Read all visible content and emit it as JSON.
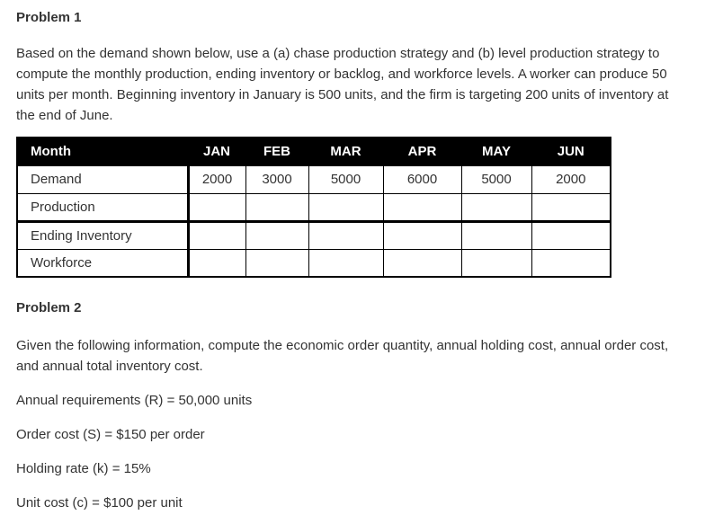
{
  "problem1": {
    "title": "Problem 1",
    "description": "Based on the demand shown below, use a (a) chase production strategy and (b) level production strategy to compute the monthly production, ending inventory or backlog, and workforce levels. A worker can produce 50 units per month. Beginning inventory in January is 500 units, and the firm is targeting 200 units of inventory at the end of June.",
    "table": {
      "header": [
        "Month",
        "JAN",
        "FEB",
        "MAR",
        "APR",
        "MAY",
        "JUN"
      ],
      "rows": [
        {
          "label": "Demand",
          "values": [
            "2000",
            "3000",
            "5000",
            "6000",
            "5000",
            "2000"
          ]
        },
        {
          "label": "Production",
          "values": [
            "",
            "",
            "",
            "",
            "",
            ""
          ]
        },
        {
          "label": "Ending Inventory",
          "values": [
            "",
            "",
            "",
            "",
            "",
            ""
          ]
        },
        {
          "label": "Workforce",
          "values": [
            "",
            "",
            "",
            "",
            "",
            ""
          ]
        }
      ]
    }
  },
  "problem2": {
    "title": "Problem 2",
    "description": "Given the following information, compute the economic order quantity, annual holding cost, annual order cost, and annual total inventory cost.",
    "given_lines": [
      "Annual requirements (R) = 50,000 units",
      "Order cost (S) = $150 per order",
      "Holding rate (k) = 15%",
      "Unit cost (c) = $100 per unit"
    ]
  },
  "colors": {
    "text": "#333333",
    "table_header_bg": "#000000",
    "table_header_text": "#ffffff",
    "table_border": "#000000",
    "page_bg": "#ffffff"
  }
}
